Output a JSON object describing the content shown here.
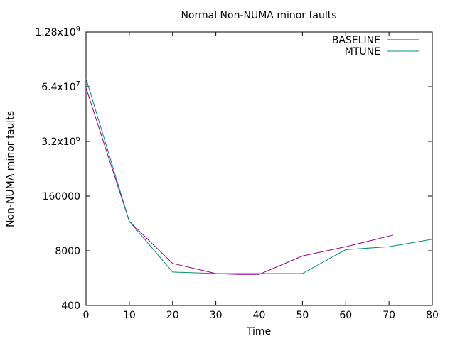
{
  "chart_data": {
    "type": "line",
    "title": "Normal Non-NUMA minor faults",
    "xlabel": "Time",
    "ylabel": "Non-NUMA minor faults",
    "yscale": "log",
    "xlim": [
      0,
      80
    ],
    "ylim": [
      400,
      1280000000
    ],
    "x_ticks": [
      0,
      10,
      20,
      30,
      40,
      50,
      60,
      70,
      80
    ],
    "y_ticks": [
      {
        "value": 400,
        "label": "400"
      },
      {
        "value": 8000,
        "label": "8000"
      },
      {
        "value": 160000,
        "label": "160000"
      },
      {
        "value": 3200000,
        "label": "3.2x10",
        "exp": "6"
      },
      {
        "value": 64000000,
        "label": "6.4x10",
        "exp": "7"
      },
      {
        "value": 1280000000,
        "label": "1.28x10",
        "exp": "9"
      }
    ],
    "legend_position": "top-right",
    "grid": false,
    "series": [
      {
        "name": "BASELINE",
        "color": "#940094",
        "points": [
          [
            0,
            60000000
          ],
          [
            10,
            40000
          ],
          [
            20,
            4000
          ],
          [
            30,
            2300
          ],
          [
            35,
            2200
          ],
          [
            40,
            2200
          ],
          [
            50,
            6000
          ],
          [
            60,
            10000
          ],
          [
            71,
            19000
          ]
        ]
      },
      {
        "name": "MTUNE",
        "color": "#009070",
        "points": [
          [
            0,
            100000000
          ],
          [
            10,
            40000
          ],
          [
            20,
            2500
          ],
          [
            30,
            2300
          ],
          [
            40,
            2300
          ],
          [
            50,
            2300
          ],
          [
            60,
            8500
          ],
          [
            70,
            10000
          ],
          [
            80,
            15000
          ]
        ]
      }
    ]
  }
}
